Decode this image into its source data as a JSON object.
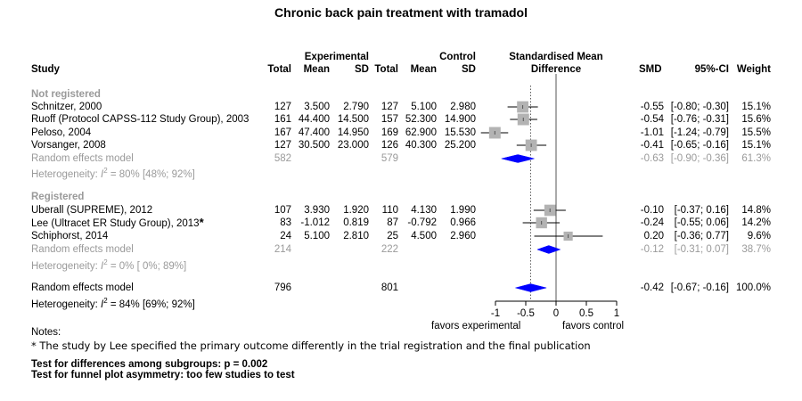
{
  "title": "Chronic back pain treatment with tramadol",
  "headers": {
    "group_experimental": "Experimental",
    "group_control": "Control",
    "smd_top": "Standardised Mean",
    "smd_bottom": "Difference",
    "study": "Study",
    "total": "Total",
    "mean": "Mean",
    "sd": "SD",
    "smd": "SMD",
    "ci": "95%-CI",
    "weight": "Weight"
  },
  "subgroups": [
    {
      "label": "Not registered",
      "studies": [
        {
          "study": "Schnitzer, 2000",
          "et": "127",
          "em": "3.500",
          "esd": "2.790",
          "ct": "127",
          "cm": "5.100",
          "csd": "2.980",
          "smd": "-0.55",
          "ci": "[-0.80; -0.30]",
          "weight": "15.1%"
        },
        {
          "study": "Ruoff (Protocol CAPSS-112 Study Group), 2003",
          "et": "161",
          "em": "44.400",
          "esd": "14.500",
          "ct": "157",
          "cm": "52.300",
          "csd": "14.900",
          "smd": "-0.54",
          "ci": "[-0.76; -0.31]",
          "weight": "15.6%"
        },
        {
          "study": "Peloso, 2004",
          "et": "167",
          "em": "47.400",
          "esd": "14.950",
          "ct": "169",
          "cm": "62.900",
          "csd": "15.530",
          "smd": "-1.01",
          "ci": "[-1.24; -0.79]",
          "weight": "15.5%"
        },
        {
          "study": "Vorsanger, 2008",
          "et": "127",
          "em": "30.500",
          "esd": "23.000",
          "ct": "126",
          "cm": "40.300",
          "csd": "25.200",
          "smd": "-0.41",
          "ci": "[-0.65; -0.16]",
          "weight": "15.1%"
        }
      ],
      "re": {
        "label": "Random effects model",
        "et": "582",
        "ct": "579",
        "smd": "-0.63",
        "ci": "[-0.90; -0.36]",
        "weight": "61.3%"
      },
      "het_prefix": "Heterogeneity: ",
      "het_i": "I",
      "het_sup": "2",
      "het_rest": " = 80% [48%; 92%]"
    },
    {
      "label": "Registered",
      "studies": [
        {
          "study": "Uberall (SUPREME), 2012",
          "et": "107",
          "em": "3.930",
          "esd": "1.920",
          "ct": "110",
          "cm": "4.130",
          "csd": "1.990",
          "smd": "-0.10",
          "ci": "[-0.37; 0.16]",
          "weight": "14.8%"
        },
        {
          "study": "Lee (Ultracet ER Study Group), 2013",
          "mark": "*",
          "et": "83",
          "em": "-1.012",
          "esd": "0.819",
          "ct": "87",
          "cm": "-0.792",
          "csd": "0.966",
          "smd": "-0.24",
          "ci": "[-0.55; 0.06]",
          "weight": "14.2%"
        },
        {
          "study": "Schiphorst, 2014",
          "et": "24",
          "em": "5.100",
          "esd": "2.810",
          "ct": "25",
          "cm": "4.500",
          "csd": "2.960",
          "smd": "0.20",
          "ci": "[-0.36; 0.77]",
          "weight": "9.6%"
        }
      ],
      "re": {
        "label": "Random effects model",
        "et": "214",
        "ct": "222",
        "smd": "-0.12",
        "ci": "[-0.31; 0.07]",
        "weight": "38.7%"
      },
      "het_prefix": "Heterogeneity: ",
      "het_i": "I",
      "het_sup": "2",
      "het_rest": " = 0% [ 0%; 89%]"
    }
  ],
  "overall": {
    "label": "Random effects model",
    "et": "796",
    "ct": "801",
    "smd": "-0.42",
    "ci": "[-0.67; -0.16]",
    "weight": "100.0%",
    "het_prefix": "Heterogeneity: ",
    "het_i": "I",
    "het_sup": "2",
    "het_rest": " = 84% [69%; 92%]"
  },
  "axis_labels": {
    "left": "favors experimental",
    "right": "favors control"
  },
  "notes": {
    "heading": "Notes:",
    "line": "* The study by Lee specified the primary outcome differently in the trial registration and the final publication",
    "test1": "Test for differences among subgroups: p = 0.002",
    "test2": "Test for funnel plot asymmetry: too few studies to test"
  },
  "colors": {
    "square": "#b3b3b3",
    "diamond": "#0000ff",
    "grey_text": "#9a9a9a"
  },
  "chart_data": {
    "type": "forest",
    "xlim": [
      -1,
      1
    ],
    "ticks": [
      -1,
      -0.5,
      0,
      0.5,
      1
    ],
    "tick_labels": [
      "-1",
      "-0.5",
      "0",
      "0.5",
      "1"
    ],
    "reference_line": 0,
    "overall_line": -0.42,
    "studies": [
      {
        "name": "Schnitzer, 2000",
        "smd": -0.55,
        "lo": -0.8,
        "hi": -0.3,
        "weight": 15.1
      },
      {
        "name": "Ruoff (Protocol CAPSS-112 Study Group), 2003",
        "smd": -0.54,
        "lo": -0.76,
        "hi": -0.31,
        "weight": 15.6
      },
      {
        "name": "Peloso, 2004",
        "smd": -1.01,
        "lo": -1.24,
        "hi": -0.79,
        "weight": 15.5
      },
      {
        "name": "Vorsanger, 2008",
        "smd": -0.41,
        "lo": -0.65,
        "hi": -0.16,
        "weight": 15.1
      },
      {
        "name": "Uberall (SUPREME), 2012",
        "smd": -0.1,
        "lo": -0.37,
        "hi": 0.16,
        "weight": 14.8
      },
      {
        "name": "Lee (Ultracet ER Study Group), 2013",
        "smd": -0.24,
        "lo": -0.55,
        "hi": 0.06,
        "weight": 14.2
      },
      {
        "name": "Schiphorst, 2014",
        "smd": 0.2,
        "lo": -0.36,
        "hi": 0.77,
        "weight": 9.6
      }
    ],
    "pooled": [
      {
        "name": "Not registered",
        "smd": -0.63,
        "lo": -0.9,
        "hi": -0.36
      },
      {
        "name": "Registered",
        "smd": -0.12,
        "lo": -0.31,
        "hi": 0.07
      },
      {
        "name": "Overall",
        "smd": -0.42,
        "lo": -0.67,
        "hi": -0.16
      }
    ]
  }
}
